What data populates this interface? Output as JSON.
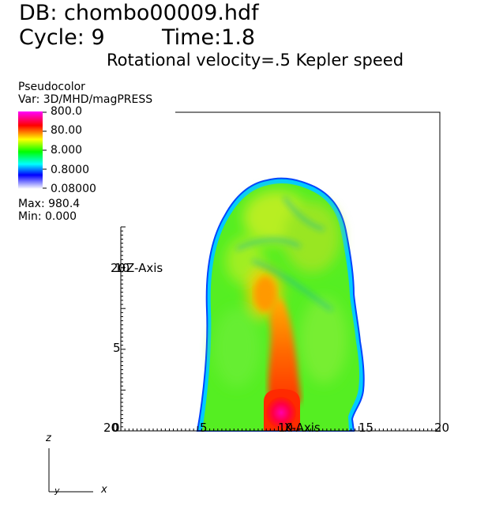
{
  "header": {
    "db_line": "DB: chombo00009.hdf",
    "cycle": "Cycle: 9",
    "time": "Time:1.8",
    "subtitle": "Rotational velocity=.5 Kepler speed"
  },
  "legend": {
    "title": "Pseudocolor",
    "var": "Var: 3D/MHD/magPRESS",
    "labels": [
      "800.0",
      "80.00",
      "8.000",
      "0.8000",
      "0.08000"
    ],
    "max": "Max:  980.4",
    "min": "Min:  0.000",
    "colors": [
      "#ff00ff",
      "#ff0000",
      "#ffff00",
      "#00ff00",
      "#00ffff",
      "#0000ff",
      "#ffffff"
    ]
  },
  "axes": {
    "x_title": "X-Axis",
    "y_title": "Z-Axis",
    "x_ticks": [
      "20",
      "5",
      "10",
      "15",
      "20"
    ],
    "y_ticks": [
      "20",
      "10",
      "5",
      "0"
    ],
    "triad": {
      "z": "z",
      "y": "y",
      "x": "x"
    }
  }
}
